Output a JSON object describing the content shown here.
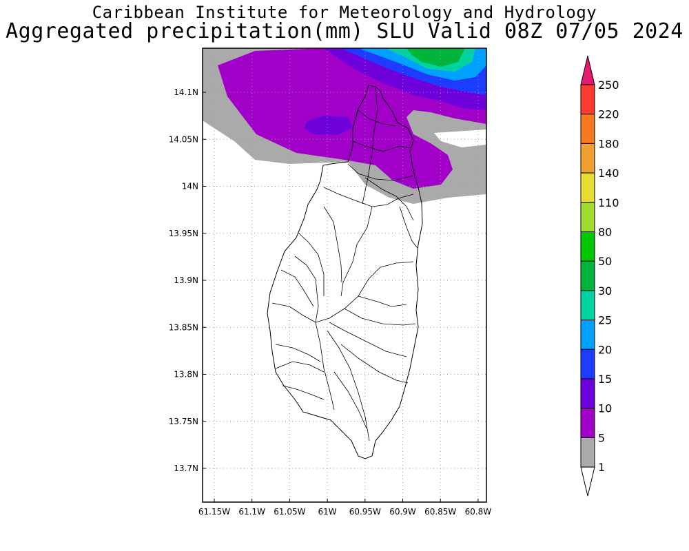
{
  "header": {
    "title_line1": "Caribbean Institute for Meteorology and Hydrology",
    "title_line2": "Aggregated precipitation(mm) SLU Valid 08Z 07/05 2024"
  },
  "map": {
    "lat_ticks": [
      "14.1N",
      "14.05N",
      "14N",
      "13.95N",
      "13.9N",
      "13.85N",
      "13.8N",
      "13.75N",
      "13.7N"
    ],
    "lon_ticks": [
      "61.15W",
      "61.1W",
      "61.05W",
      "61W",
      "60.95W",
      "60.9W",
      "60.85W",
      "60.8W"
    ]
  },
  "colorbar": {
    "labels": [
      "250",
      "220",
      "180",
      "140",
      "110",
      "80",
      "50",
      "30",
      "25",
      "20",
      "15",
      "10",
      "5",
      "1"
    ],
    "colors": [
      "#e6196e",
      "#ff3b30",
      "#f87a20",
      "#f0a030",
      "#e6dc32",
      "#a0dc32",
      "#00c800",
      "#00b43c",
      "#00d2a0",
      "#00a0ff",
      "#1e3cff",
      "#6e00dc",
      "#a000c8",
      "#aaaaaa",
      "#ffffff"
    ]
  }
}
